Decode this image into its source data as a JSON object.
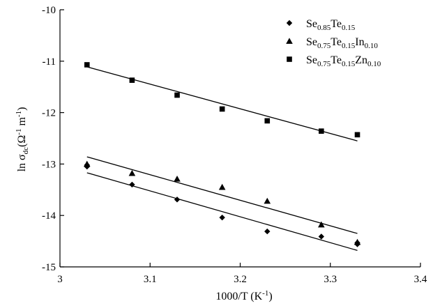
{
  "chart_data": {
    "type": "scatter",
    "xlabel": "1000/T (K",
    "xlabel_sup": "-1",
    "xlabel_end": ")",
    "ylabel": "ln σ",
    "ylabel_sub": "dc",
    "ylabel_unit": "(Ω",
    "ylabel_sup1": "-1",
    "ylabel_unit2": " m",
    "ylabel_sup2": "-1",
    "ylabel_end": ")",
    "xlim": [
      3.0,
      3.4
    ],
    "ylim": [
      -15,
      -10
    ],
    "x_ticks": [
      3.0,
      3.1,
      3.2,
      3.3,
      3.4
    ],
    "x_tick_labels": [
      "3",
      "3.1",
      "3.2",
      "3.3",
      "3.4"
    ],
    "y_ticks": [
      -15,
      -14,
      -13,
      -12,
      -11,
      -10
    ],
    "y_tick_labels": [
      "-15",
      "-14",
      "-13",
      "-12",
      "-11",
      "-10"
    ],
    "grid": false,
    "legend_position": "top-right",
    "series": [
      {
        "name": "Se0.85Te0.15",
        "legend_parts": [
          [
            "Se",
            "0.85"
          ],
          [
            "Te",
            "0.15"
          ]
        ],
        "marker": "diamond",
        "x": [
          3.03,
          3.03,
          3.08,
          3.13,
          3.18,
          3.23,
          3.29,
          3.33,
          3.33
        ],
        "y": [
          -13.05,
          -13.02,
          -13.4,
          -13.69,
          -14.04,
          -14.31,
          -14.41,
          -14.53,
          -14.56
        ],
        "fit": {
          "x": [
            3.03,
            3.33
          ],
          "y": [
            -13.17,
            -14.68
          ]
        }
      },
      {
        "name": "Se0.75Te0.15In0.10",
        "legend_parts": [
          [
            "Se",
            "0.75"
          ],
          [
            "Te",
            "0.15"
          ],
          [
            "In",
            "0.10"
          ]
        ],
        "marker": "triangle",
        "x": [
          3.03,
          3.08,
          3.13,
          3.18,
          3.23,
          3.29,
          3.33
        ],
        "y": [
          -13.0,
          -13.18,
          -13.29,
          -13.45,
          -13.72,
          -14.18,
          -14.52
        ],
        "fit": {
          "x": [
            3.03,
            3.33
          ],
          "y": [
            -12.86,
            -14.35
          ]
        }
      },
      {
        "name": "Se0.75Te0.15Zn0.10",
        "legend_parts": [
          [
            "Se",
            "0.75"
          ],
          [
            "Te",
            "0.15"
          ],
          [
            "Zn",
            "0.10"
          ]
        ],
        "marker": "square",
        "x": [
          3.03,
          3.08,
          3.13,
          3.18,
          3.23,
          3.29,
          3.33
        ],
        "y": [
          -11.07,
          -11.37,
          -11.66,
          -11.93,
          -12.16,
          -12.36,
          -12.43
        ],
        "fit": {
          "x": [
            3.03,
            3.33
          ],
          "y": [
            -11.11,
            -12.55
          ]
        }
      }
    ]
  }
}
